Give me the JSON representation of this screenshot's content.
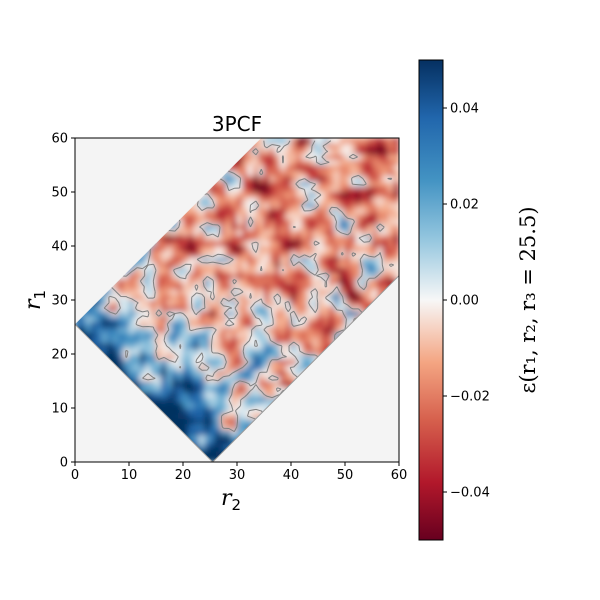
{
  "chart_data": {
    "type": "heatmap",
    "title": "3PCF",
    "xlabel": "r",
    "xlabel_sub": "2",
    "ylabel": "r",
    "ylabel_sub": "1",
    "xlim": [
      0,
      60
    ],
    "ylim": [
      0,
      60
    ],
    "xticks": [
      "0",
      "10",
      "20",
      "30",
      "40",
      "50",
      "60"
    ],
    "yticks": [
      "0",
      "10",
      "20",
      "30",
      "40",
      "50",
      "60"
    ],
    "valid_region": "diagonal band between r1 + r2 = 25.5 and |r1 - r2| = 25.5 (triangle inequality), clipped to the plot",
    "colormap": "RdBu",
    "colorbar": {
      "label": "ε(r₁, r₂, r₃ = 25.5)",
      "range": [
        -0.05,
        0.05
      ],
      "ticks": [
        "0.04",
        "0.02",
        "0.00",
        "−0.02",
        "−0.04"
      ],
      "tick_values": [
        0.04,
        0.02,
        0.0,
        -0.02,
        -0.04
      ],
      "top_color": "#08306b",
      "mid_color": "#f7f7f7",
      "bottom_color": "#67001f"
    },
    "background_color": "#f4f4f4",
    "contour_color": "#808080"
  }
}
